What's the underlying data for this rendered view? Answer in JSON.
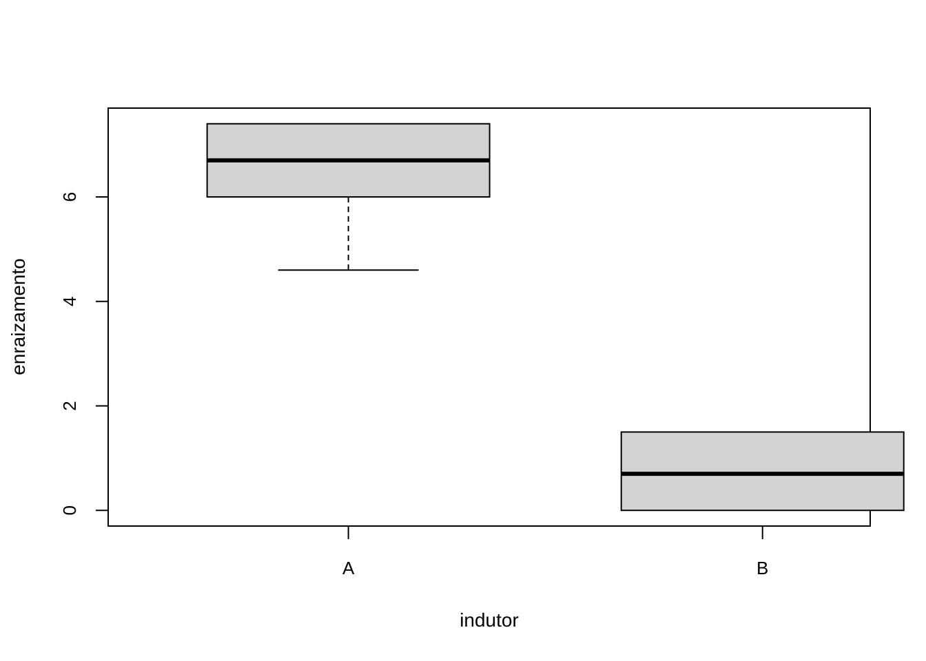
{
  "chart_data": {
    "type": "boxplot",
    "title": "",
    "xlabel": "indutor",
    "ylabel": "enraizamento",
    "ylim": [
      -0.3,
      7.7
    ],
    "y_ticks": [
      0,
      2,
      4,
      6
    ],
    "y_tick_labels": [
      "0",
      "2",
      "4",
      "6"
    ],
    "categories": [
      "A",
      "B"
    ],
    "boxes": [
      {
        "category": "A",
        "whisker_low": 4.6,
        "q1": 6.0,
        "median": 6.7,
        "q3": 7.4,
        "whisker_high": 7.4
      },
      {
        "category": "B",
        "whisker_low": 0.0,
        "q1": 0.0,
        "median": 0.7,
        "q3": 1.5,
        "whisker_high": 1.5
      }
    ],
    "grid": false,
    "legend": "none",
    "colors": {
      "box_fill": "#d3d3d3",
      "stroke": "#000000"
    }
  }
}
